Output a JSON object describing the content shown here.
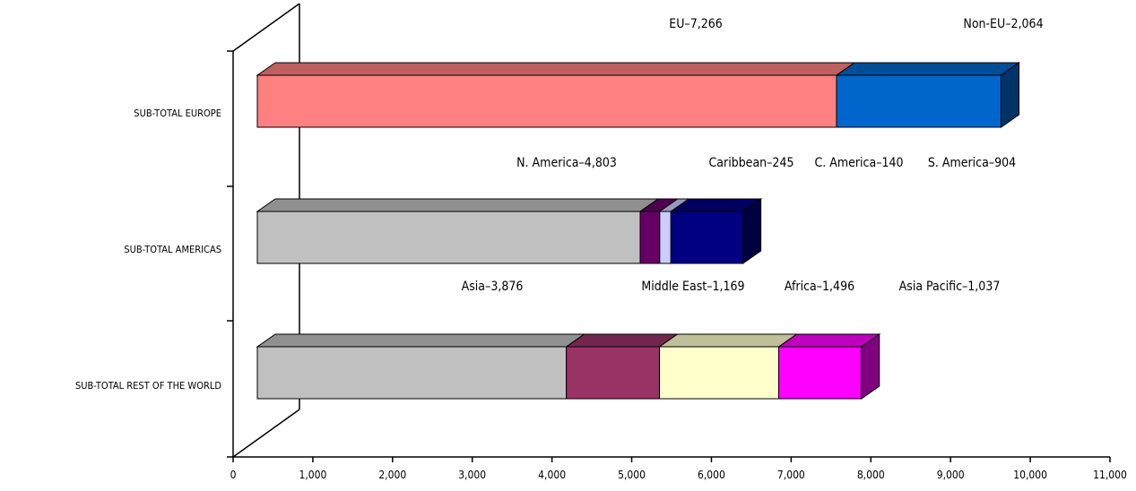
{
  "chart_data": {
    "type": "bar",
    "orientation": "horizontal",
    "stacked": true,
    "three_d": true,
    "grid": false,
    "legend": "none",
    "title": "",
    "xlabel": "",
    "ylabel": "",
    "xlim": [
      0,
      11000
    ],
    "x_ticks": [
      "0",
      "1,000",
      "2,000",
      "3,000",
      "4,000",
      "5,000",
      "6,000",
      "7,000",
      "8,000",
      "9,000",
      "10,000",
      "11,000"
    ],
    "categories": [
      "SUB-TOTAL EUROPE",
      "SUB-TOTAL AMERICAS",
      "SUB-TOTAL REST OF THE WORLD"
    ],
    "bars": [
      {
        "category": "SUB-TOTAL EUROPE",
        "segments": [
          {
            "label": "EU–7,266",
            "value": 7266,
            "color": "#FF8080"
          },
          {
            "label": "Non-EU–2,064",
            "value": 2064,
            "color": "#0066CC"
          }
        ]
      },
      {
        "category": "SUB-TOTAL AMERICAS",
        "segments": [
          {
            "label": "N. America–4,803",
            "value": 4803,
            "color": "#C0C0C0"
          },
          {
            "label": "Caribbean–245",
            "value": 245,
            "color": "#660066"
          },
          {
            "label": "C. America–140",
            "value": 140,
            "color": "#CCCCFF"
          },
          {
            "label": "S. America–904",
            "value": 904,
            "color": "#000080"
          }
        ]
      },
      {
        "category": "SUB-TOTAL REST OF THE WORLD",
        "segments": [
          {
            "label": "Asia–3,876",
            "value": 3876,
            "color": "#C0C0C0"
          },
          {
            "label": "Middle East–1,169",
            "value": 1169,
            "color": "#993366"
          },
          {
            "label": "Africa–1,496",
            "value": 1496,
            "color": "#FFFFCC"
          },
          {
            "label": "Asia Pacific–1,037",
            "value": 1037,
            "color": "#FF00FF"
          }
        ]
      }
    ]
  }
}
